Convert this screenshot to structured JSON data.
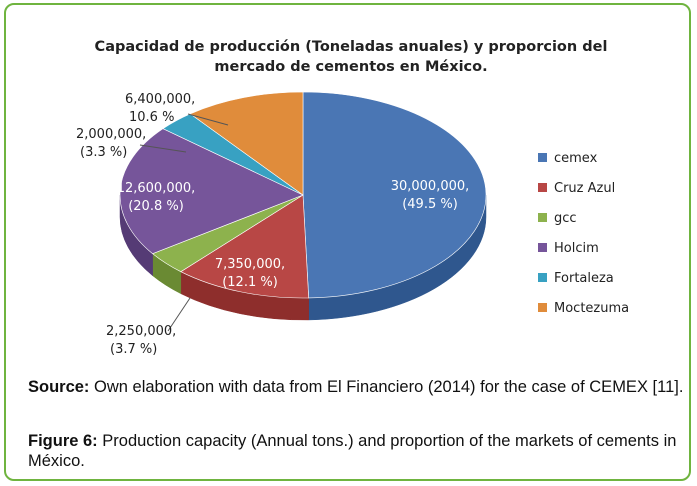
{
  "chart_data": {
    "type": "pie",
    "title_lines": [
      "Capacidad de producción (Toneladas anuales) y proporcion del",
      "mercado de cementos en México."
    ],
    "slices": [
      {
        "name": "cemex",
        "value": 30000000,
        "label": "30,000,000,",
        "pct": "(49.5 %)",
        "color": "#4a76b4",
        "side": "#2f578e",
        "text_color": "#ffffff"
      },
      {
        "name": "Cruz Azul",
        "value": 7350000,
        "label": "7,350,000,",
        "pct": "(12.1 %)",
        "color": "#b84745",
        "side": "#8e2e2c",
        "text_color": "#ffffff"
      },
      {
        "name": "gcc",
        "value": 2250000,
        "label": "2,250,000,",
        "pct": "(3.7 %)",
        "color": "#8db24d",
        "side": "#6a8a33",
        "text_color": "#222222"
      },
      {
        "name": "Holcim",
        "value": 12600000,
        "label": "12,600,000,",
        "pct": "(20.8 %)",
        "color": "#76559a",
        "side": "#553b75",
        "text_color": "#ffffff"
      },
      {
        "name": "Fortaleza",
        "value": 2000000,
        "label": "2,000,000,",
        "pct": "(3.3 %)",
        "color": "#38a1c2",
        "side": "#23799a",
        "text_color": "#222222"
      },
      {
        "name": "Moctezuma",
        "value": 6400000,
        "label": "6,400,000,",
        "pct": "10.6 %",
        "color": "#e08c3b",
        "side": "#b06a25",
        "text_color": "#222222"
      }
    ],
    "legend_position": "right"
  },
  "caption": {
    "source_label": "Source:",
    "source_text": " Own elaboration with data from El Financiero (2014) for the case of CEMEX [11].",
    "figure_label": "Figure 6:",
    "figure_text": " Production capacity (Annual tons.) and proportion of the markets of cements in México."
  }
}
